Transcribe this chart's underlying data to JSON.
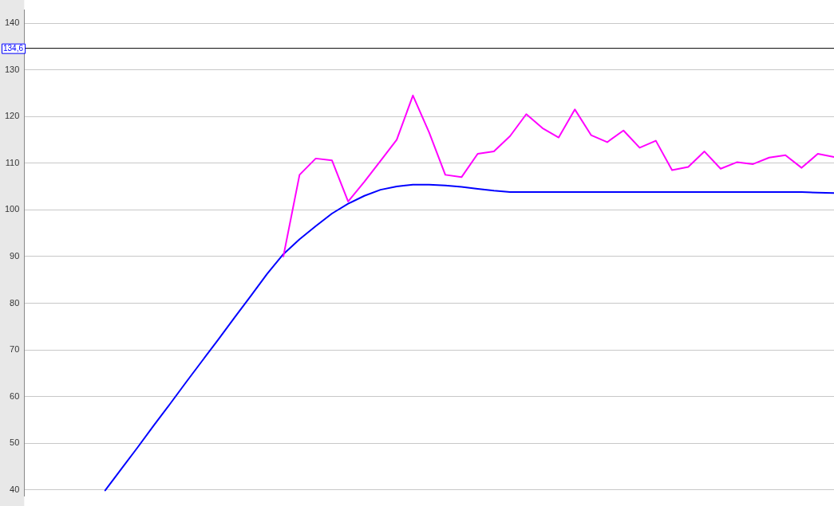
{
  "chart_data": {
    "type": "line",
    "categories": [
      null,
      null,
      null,
      null,
      null,
      null,
      null,
      null,
      null,
      null,
      null,
      null,
      null,
      null,
      null,
      null,
      null,
      null,
      null,
      null,
      null,
      null,
      null,
      null,
      null,
      null,
      null,
      null,
      null,
      null,
      null,
      null,
      null,
      null,
      null,
      null,
      null,
      null,
      null,
      null,
      null,
      null,
      null,
      null,
      null,
      null,
      null,
      null,
      null,
      null,
      null
    ],
    "series": [
      {
        "color": "#ff00ff",
        "values": [
          null,
          null,
          null,
          null,
          null,
          null,
          null,
          null,
          null,
          null,
          null,
          null,
          null,
          null,
          null,
          null,
          90.0,
          107.5,
          111.0,
          110.6,
          101.8,
          106.0,
          110.5,
          115.0,
          124.5,
          116.6,
          107.5,
          107.0,
          112.0,
          112.5,
          115.8,
          120.5,
          117.5,
          115.5,
          121.5,
          116.0,
          114.5,
          117.0,
          113.3,
          114.8,
          108.5,
          109.2,
          112.5,
          108.8,
          110.2,
          109.8,
          111.2,
          111.7,
          109.0,
          112.0,
          111.3
        ]
      },
      {
        "color": "#0000ff",
        "values": [
          null,
          null,
          null,
          null,
          null,
          39.9,
          44.5,
          49.1,
          53.8,
          58.4,
          63.1,
          67.7,
          72.3,
          77.0,
          81.6,
          86.3,
          90.5,
          93.7,
          96.5,
          99.2,
          101.3,
          103.0,
          104.3,
          105.0,
          105.4,
          105.4,
          105.2,
          104.9,
          104.5,
          104.1,
          103.8,
          103.8,
          103.8,
          103.8,
          103.8,
          103.8,
          103.8,
          103.8,
          103.8,
          103.8,
          103.8,
          103.8,
          103.8,
          103.8,
          103.8,
          103.8,
          103.8,
          103.8,
          103.8,
          103.7,
          103.6
        ]
      }
    ],
    "ylim": [
      38.7,
      142.8
    ],
    "yticks": [
      40,
      50,
      60,
      70,
      80,
      90,
      100,
      110,
      120,
      130,
      140
    ],
    "ref_lines": [
      {
        "axis": "y",
        "value": 134.6,
        "label": "134,6",
        "color": "#000000"
      }
    ],
    "grid": "y",
    "tick_labels": "y",
    "legend": false,
    "marker": "none",
    "line_style": "solid"
  }
}
